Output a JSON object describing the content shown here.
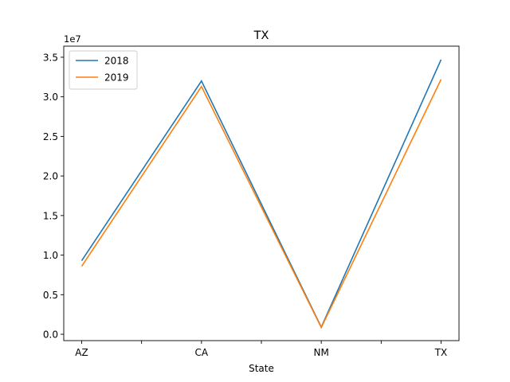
{
  "chart_data": {
    "type": "line",
    "title": "TX",
    "xlabel": "State",
    "ylabel": "",
    "y_multiplier_label": "1e7",
    "categories": [
      "AZ",
      "CA",
      "NM",
      "TX"
    ],
    "series": [
      {
        "name": "2018",
        "color": "#1f77b4",
        "values": [
          9300000,
          32000000,
          900000,
          34700000
        ]
      },
      {
        "name": "2019",
        "color": "#ff7f0e",
        "values": [
          8600000,
          31300000,
          850000,
          32200000
        ]
      }
    ],
    "ylim": [
      -0.08,
      3.64
    ],
    "y_ticks": [
      "0.0",
      "0.5",
      "1.0",
      "1.5",
      "2.0",
      "2.5",
      "3.0",
      "3.5"
    ],
    "y_tick_values": [
      0.0,
      0.5,
      1.0,
      1.5,
      2.0,
      2.5,
      3.0,
      3.5
    ],
    "minor_x_ticks": [
      0.5,
      1.5,
      2.5
    ],
    "legend_position": "top-left",
    "grid": false
  }
}
